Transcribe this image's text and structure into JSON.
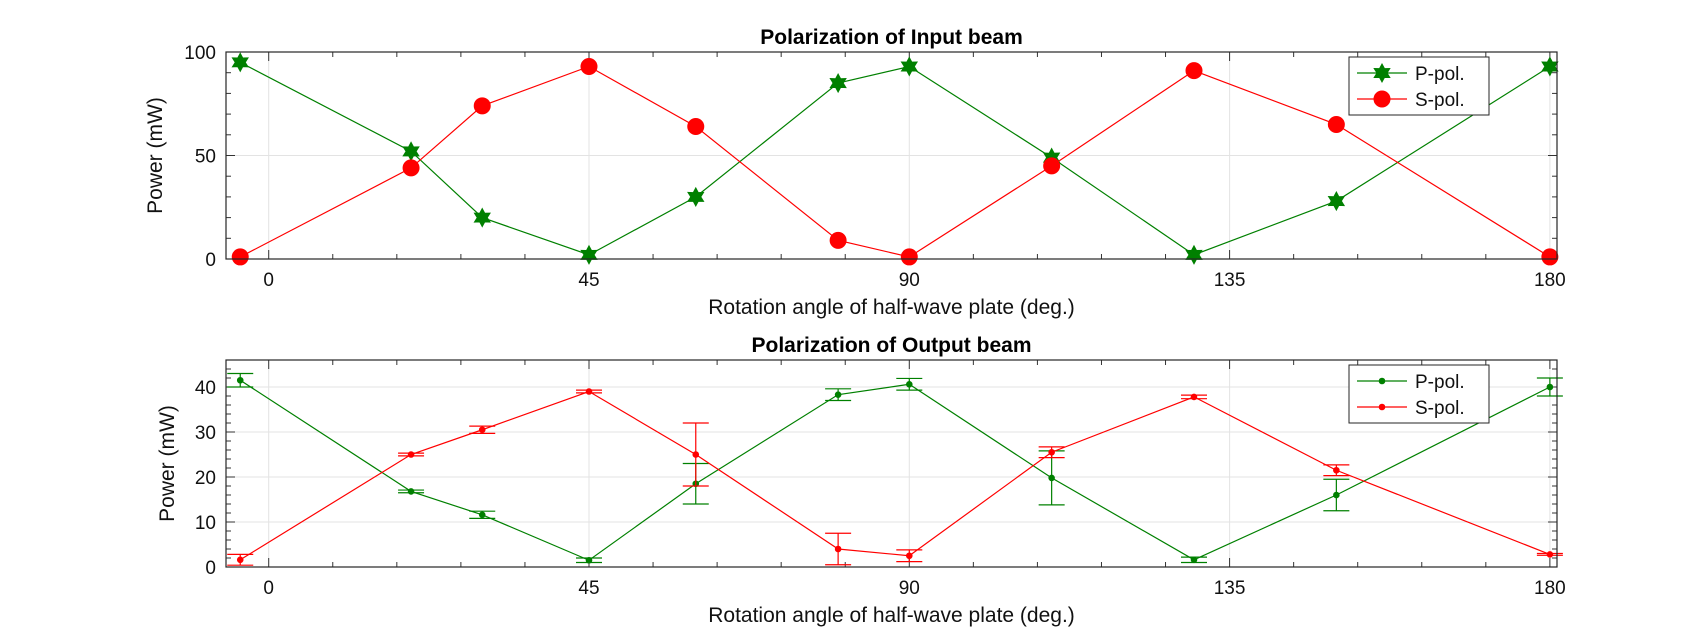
{
  "chart_data": [
    {
      "type": "line",
      "title": "Polarization of Input beam",
      "xlabel": "Rotation angle of half-wave plate (deg.)",
      "ylabel": "Power  (mW)",
      "xlim": [
        -6,
        181
      ],
      "ylim": [
        0,
        100
      ],
      "xticks": [
        0,
        45,
        90,
        135,
        180
      ],
      "yticks": [
        0,
        50,
        100
      ],
      "grid": true,
      "legend_position": "top-right",
      "series": [
        {
          "name": "P-pol.",
          "color": "#008000",
          "marker": "hexagram",
          "x": [
            -4,
            20,
            30,
            45,
            60,
            80,
            90,
            110,
            130,
            150,
            180
          ],
          "y": [
            95,
            52,
            20,
            2,
            30,
            85,
            93,
            49,
            2,
            28,
            93
          ]
        },
        {
          "name": "S-pol.",
          "color": "#ff0000",
          "marker": "circle",
          "x": [
            -4,
            20,
            30,
            45,
            60,
            80,
            90,
            110,
            130,
            150,
            180
          ],
          "y": [
            1,
            44,
            74,
            93,
            64,
            9,
            1,
            45,
            91,
            65,
            1
          ]
        }
      ]
    },
    {
      "type": "line",
      "title": "Polarization of Output beam",
      "xlabel": "Rotation angle of half-wave plate (deg.)",
      "ylabel": "Power  (mW)",
      "xlim": [
        -6,
        181
      ],
      "ylim": [
        0,
        46
      ],
      "xticks": [
        0,
        45,
        90,
        135,
        180
      ],
      "yticks": [
        0,
        10,
        20,
        30,
        40
      ],
      "grid": true,
      "legend_position": "top-right",
      "series": [
        {
          "name": "P-pol.",
          "color": "#008000",
          "marker": "dot",
          "x": [
            -4,
            20,
            30,
            45,
            60,
            80,
            90,
            110,
            130,
            150,
            180
          ],
          "y": [
            41.5,
            16.8,
            11.6,
            1.5,
            18.5,
            38.3,
            40.6,
            19.8,
            1.6,
            16,
            40
          ],
          "err": [
            1.5,
            0.3,
            0.8,
            0.5,
            4.5,
            1.3,
            1.3,
            6,
            0.6,
            3.5,
            2
          ]
        },
        {
          "name": "S-pol.",
          "color": "#ff0000",
          "marker": "dot",
          "x": [
            -4,
            20,
            30,
            45,
            60,
            80,
            90,
            110,
            130,
            150,
            180
          ],
          "y": [
            1.6,
            25,
            30.5,
            39,
            25,
            4,
            2.5,
            25.5,
            37.8,
            21.5,
            2.8
          ],
          "err": [
            1.2,
            0.3,
            0.8,
            0.3,
            7,
            3.5,
            1.3,
            1.2,
            0.4,
            1.2,
            0.2
          ]
        }
      ]
    }
  ]
}
